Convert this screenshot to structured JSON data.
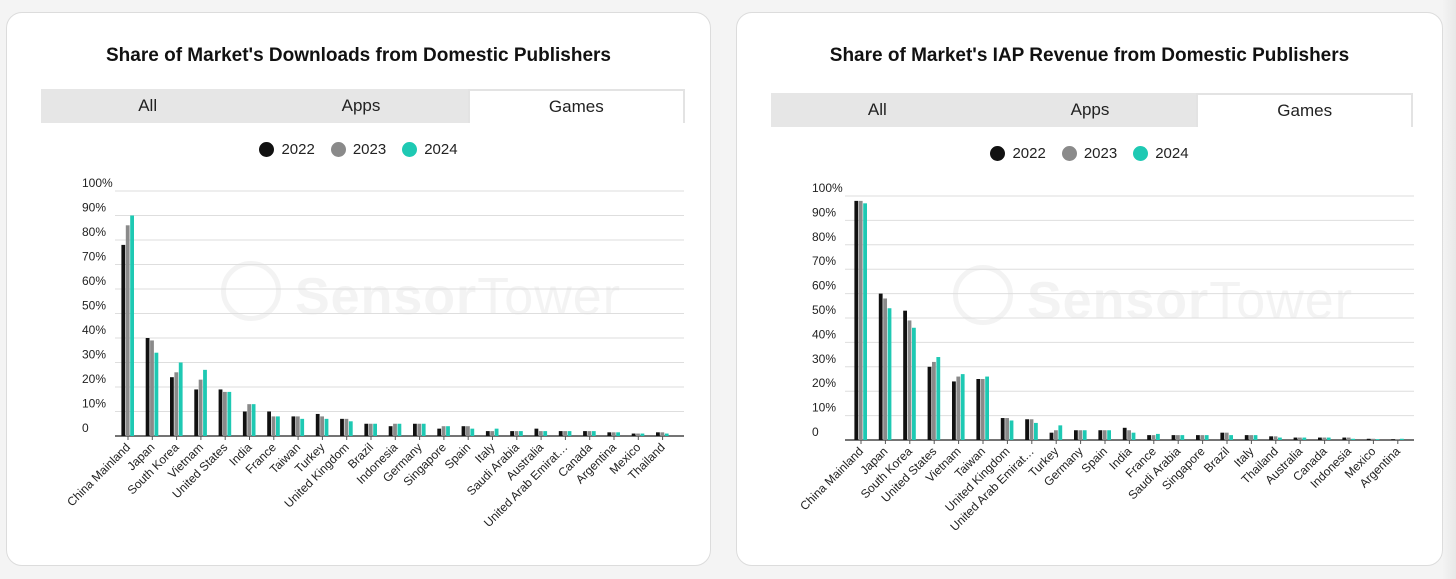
{
  "panels": [
    {
      "title": "Share of Market's Downloads from Domestic Publishers",
      "tabs": [
        {
          "label": "All",
          "active": false
        },
        {
          "label": "Apps",
          "active": false
        },
        {
          "label": "Games",
          "active": true
        }
      ]
    },
    {
      "title": "Share of Market's IAP Revenue from Domestic Publishers",
      "tabs": [
        {
          "label": "All",
          "active": false
        },
        {
          "label": "Apps",
          "active": false
        },
        {
          "label": "Games",
          "active": true
        }
      ]
    }
  ],
  "legend": [
    "2022",
    "2023",
    "2024"
  ],
  "colors": {
    "s2022": "#111111",
    "s2023": "#8a8a8a",
    "s2024": "#1ec9b3"
  },
  "watermark": {
    "left": "Sensor",
    "right": "Tower"
  },
  "chart_data": [
    {
      "type": "bar",
      "title": "Share of Market's Downloads from Domestic Publishers",
      "ylim": [
        0,
        100
      ],
      "yticks": [
        "0",
        "10%",
        "20%",
        "30%",
        "40%",
        "50%",
        "60%",
        "70%",
        "80%",
        "90%",
        "100%"
      ],
      "categories": [
        "China Mainland",
        "Japan",
        "South Korea",
        "Vietnam",
        "United States",
        "India",
        "France",
        "Taiwan",
        "Turkey",
        "United Kingdom",
        "Brazil",
        "Indonesia",
        "Germany",
        "Singapore",
        "Spain",
        "Italy",
        "Saudi Arabia",
        "Australia",
        "United Arab Emirat…",
        "Canada",
        "Argentina",
        "Mexico",
        "Thailand"
      ],
      "series": [
        {
          "name": "2022",
          "values": [
            78,
            40,
            24,
            19,
            19,
            10,
            10,
            8,
            9,
            7,
            5,
            4,
            5,
            3,
            4,
            2,
            2,
            3,
            2,
            2,
            1.5,
            1,
            1.5
          ]
        },
        {
          "name": "2023",
          "values": [
            86,
            39,
            26,
            23,
            18,
            13,
            8,
            8,
            8,
            7,
            5,
            5,
            5,
            4,
            4,
            2,
            2,
            2,
            2,
            2,
            1.5,
            1,
            1.5
          ]
        },
        {
          "name": "2024",
          "values": [
            90,
            34,
            30,
            27,
            18,
            13,
            8,
            7,
            7,
            6,
            5,
            5,
            5,
            4,
            3,
            3,
            2,
            2,
            2,
            2,
            1.5,
            1,
            1
          ]
        }
      ]
    },
    {
      "type": "bar",
      "title": "Share of Market's IAP Revenue from Domestic Publishers",
      "ylim": [
        0,
        100
      ],
      "yticks": [
        "0",
        "10%",
        "20%",
        "30%",
        "40%",
        "50%",
        "60%",
        "70%",
        "80%",
        "90%",
        "100%"
      ],
      "categories": [
        "China Mainland",
        "Japan",
        "South Korea",
        "United States",
        "Vietnam",
        "Taiwan",
        "United Kingdom",
        "United Arab Emirat…",
        "Turkey",
        "Germany",
        "Spain",
        "India",
        "France",
        "Saudi Arabia",
        "Singapore",
        "Brazil",
        "Italy",
        "Thailand",
        "Australia",
        "Canada",
        "Indonesia",
        "Mexico",
        "Argentina"
      ],
      "series": [
        {
          "name": "2022",
          "values": [
            98,
            60,
            53,
            30,
            24,
            25,
            9,
            8.5,
            3,
            4,
            4,
            5,
            2,
            2,
            2,
            3,
            2,
            1.5,
            1,
            1,
            1,
            0.5,
            0.3
          ]
        },
        {
          "name": "2023",
          "values": [
            98,
            58,
            49,
            32,
            26,
            25,
            9,
            8.5,
            4,
            4,
            4,
            4,
            2,
            2,
            2,
            3,
            2,
            1.5,
            1,
            1,
            1,
            0.5,
            0.3
          ]
        },
        {
          "name": "2024",
          "values": [
            97,
            54,
            46,
            34,
            27,
            26,
            8,
            7,
            6,
            4,
            4,
            3,
            2.5,
            2,
            2,
            2,
            2,
            1,
            1,
            1,
            0.5,
            0.3,
            0.5
          ]
        }
      ]
    }
  ]
}
